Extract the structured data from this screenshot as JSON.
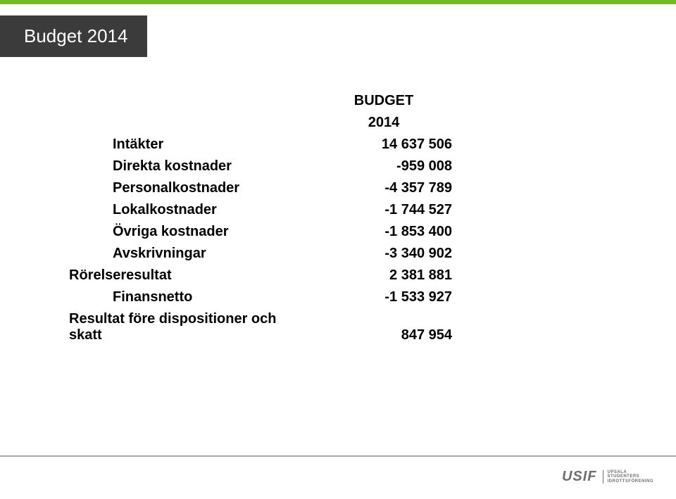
{
  "colors": {
    "accent_green": "#76b82a",
    "dark_grey": "#3b3b3b",
    "text_black": "#000000",
    "footer_line": "#a8a8a8",
    "logo_grey": "#6e6e6e",
    "background": "#ffffff"
  },
  "slide_title": "Budget 2014",
  "table": {
    "header": {
      "col_label": "",
      "col_value_top": "BUDGET",
      "col_value_bottom": "2014"
    },
    "rows": [
      {
        "label": "Intäkter",
        "value": "14 637 506",
        "indent": true
      },
      {
        "label": "Direkta kostnader",
        "value": "-959 008",
        "indent": true
      },
      {
        "label": "Personalkostnader",
        "value": "-4 357 789",
        "indent": true
      },
      {
        "label": "Lokalkostnader",
        "value": "-1 744 527",
        "indent": true
      },
      {
        "label": "Övriga kostnader",
        "value": "-1 853 400",
        "indent": true
      },
      {
        "label": "Avskrivningar",
        "value": "-3 340 902",
        "indent": true
      },
      {
        "label": "Rörelseresultat",
        "value": "2 381 881",
        "indent": false
      },
      {
        "label": "Finansnetto",
        "value": "-1 533 927",
        "indent": true
      },
      {
        "label": "Resultat före dispositioner och skatt",
        "value": "847 954",
        "indent": false
      }
    ],
    "fontsize": 20,
    "font_weight": 700
  },
  "logo": {
    "mark": "USIF",
    "sub_line1": "UPSALA",
    "sub_line2": "STUDENTERS",
    "sub_line3": "IDROTTSFÖRENING"
  }
}
